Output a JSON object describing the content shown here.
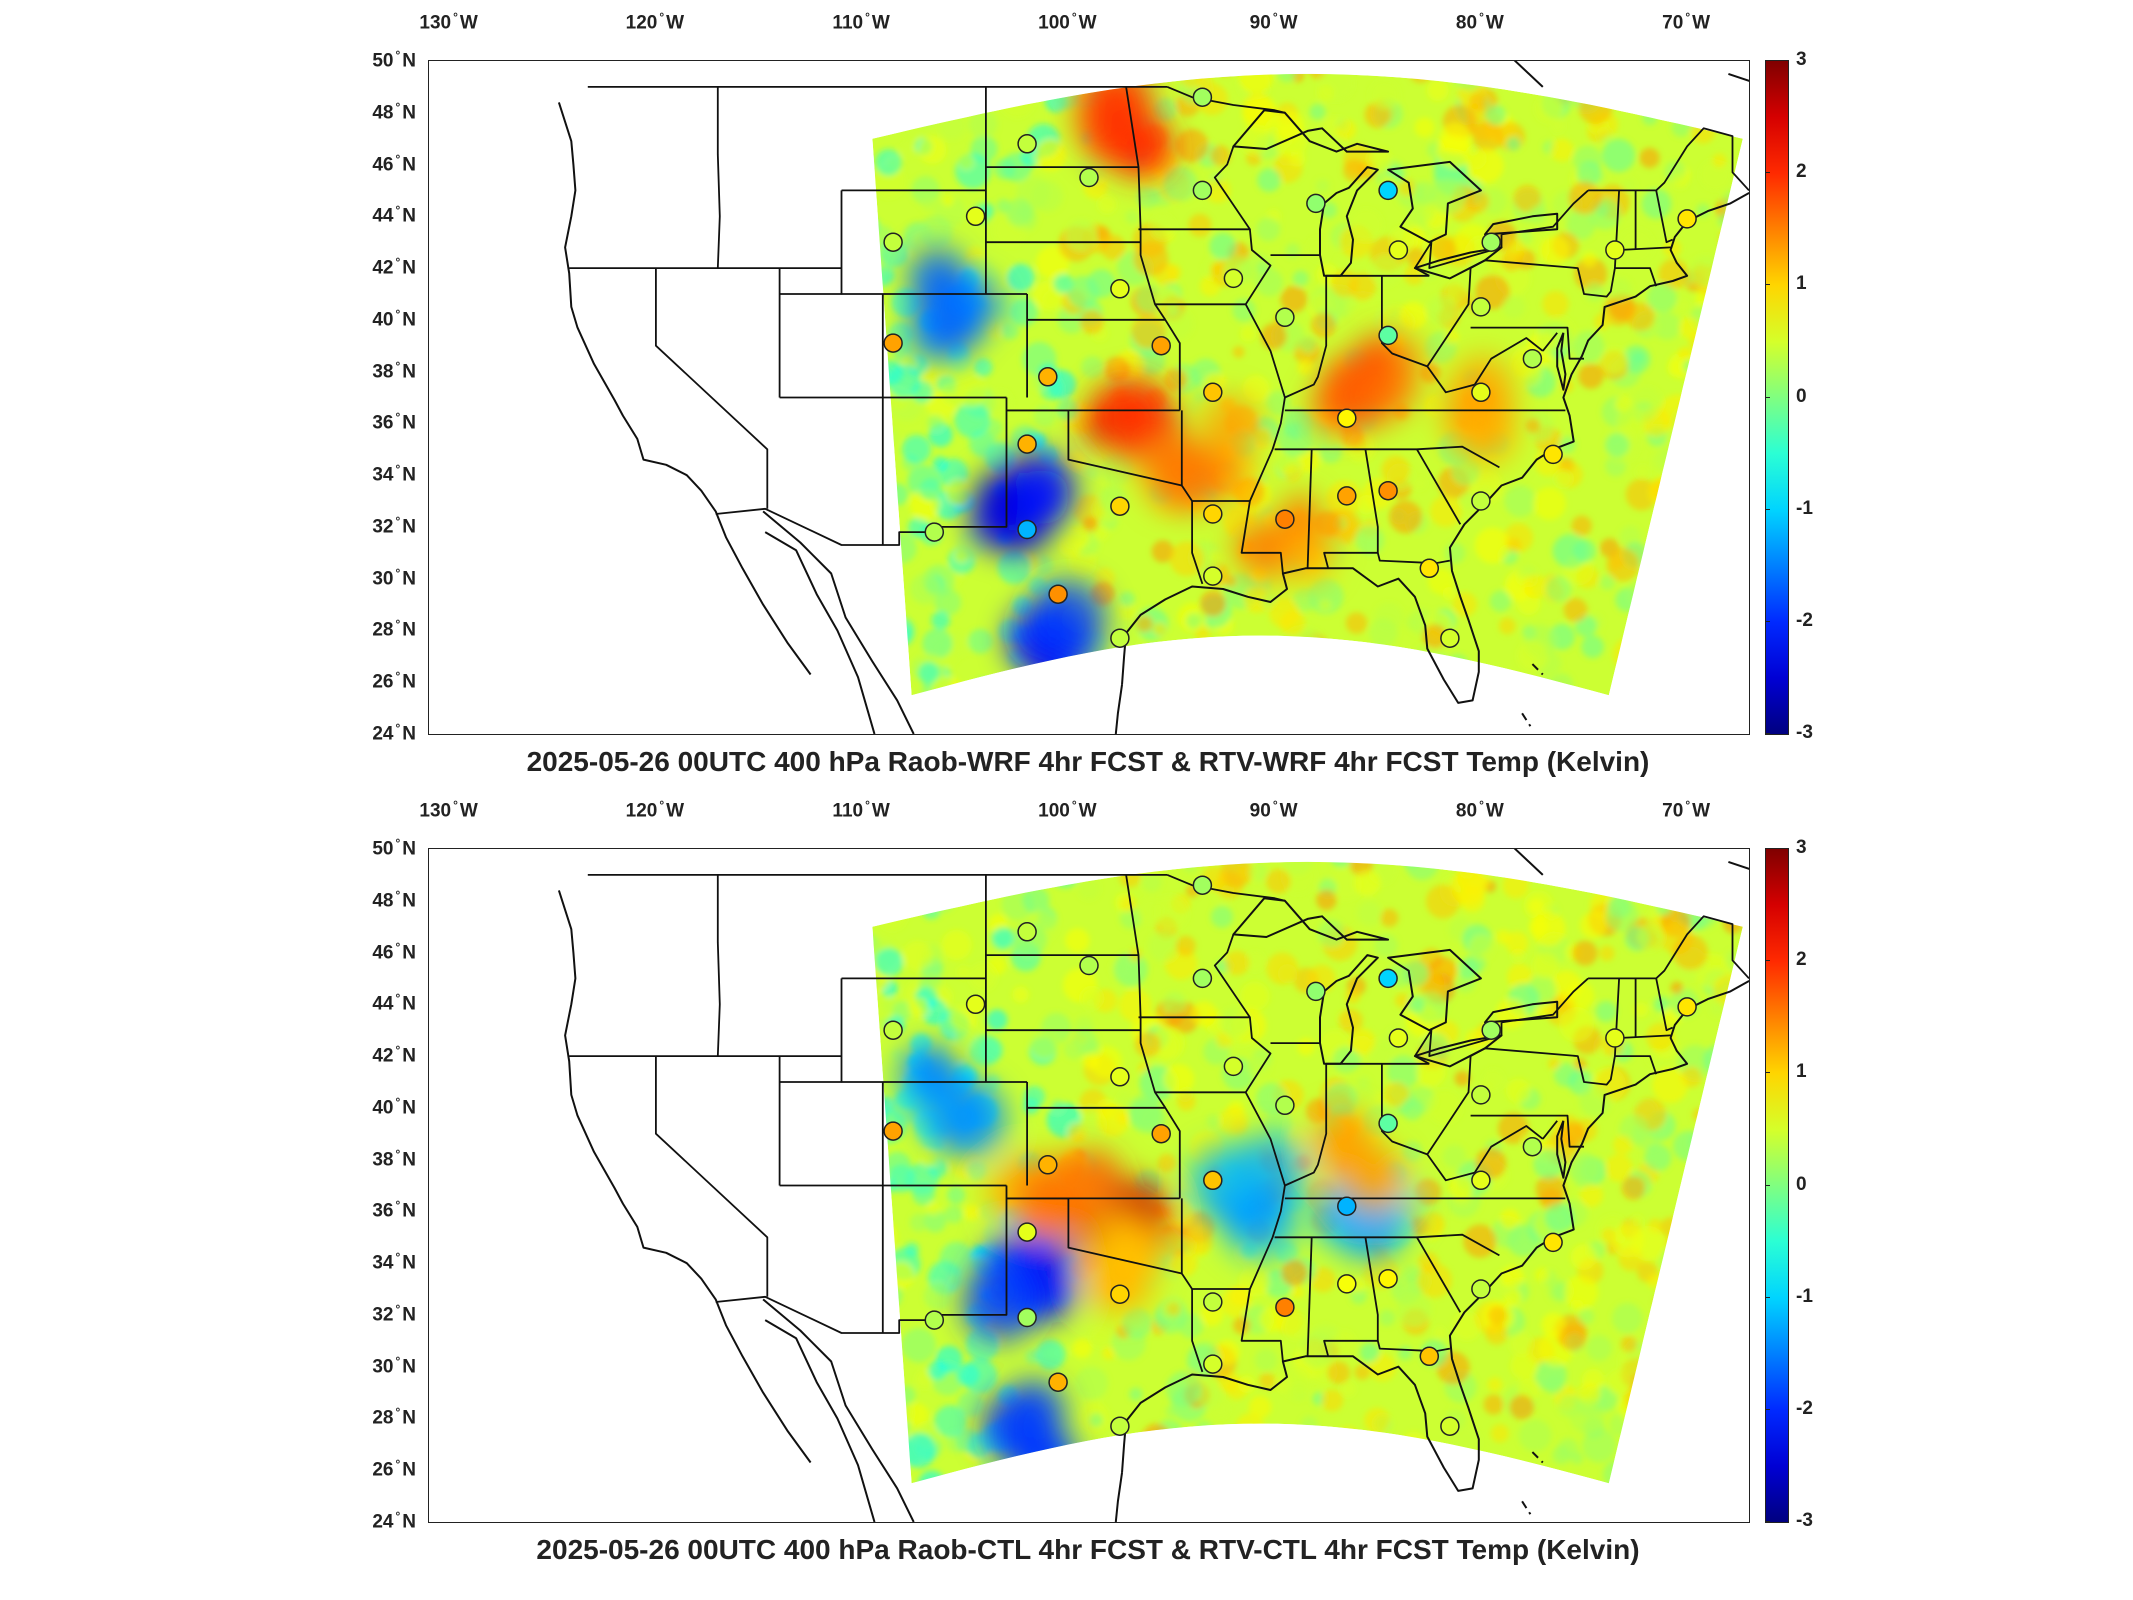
{
  "panels": [
    {
      "title": "2025-05-26 00UTC 400 hPa Raob-WRF 4hr FCST & RTV-WRF 4hr FCST Temp (Kelvin)",
      "hot_regions": [
        {
          "lon": -97.5,
          "lat": 36.0,
          "v": 2.7
        },
        {
          "lon": -97.0,
          "lat": 47.5,
          "v": 2.2
        },
        {
          "lon": -85.5,
          "lat": 37.5,
          "v": 2.0
        },
        {
          "lon": -93.5,
          "lat": 35.0,
          "v": 1.8
        },
        {
          "lon": -89.5,
          "lat": 32.0,
          "v": 1.6
        },
        {
          "lon": -79.0,
          "lat": 36.5,
          "v": 1.4
        }
      ],
      "cold_regions": [
        {
          "lon": -102.0,
          "lat": 33.0,
          "v": -2.6
        },
        {
          "lon": -106.0,
          "lat": 40.5,
          "v": -2.0
        },
        {
          "lon": -101.0,
          "lat": 27.5,
          "v": -2.4
        }
      ],
      "stations": [
        {
          "lon": -93.5,
          "lat": 48.6,
          "v": 0.2
        },
        {
          "lon": -102.0,
          "lat": 46.8,
          "v": 0.4
        },
        {
          "lon": -99.0,
          "lat": 45.5,
          "v": 0.3
        },
        {
          "lon": -93.5,
          "lat": 45.0,
          "v": 0.2
        },
        {
          "lon": -88.0,
          "lat": 44.5,
          "v": 0.1
        },
        {
          "lon": -84.5,
          "lat": 45.0,
          "v": -1.0
        },
        {
          "lon": -104.5,
          "lat": 44.0,
          "v": 0.6
        },
        {
          "lon": -108.5,
          "lat": 43.0,
          "v": 0.4
        },
        {
          "lon": -84.0,
          "lat": 42.7,
          "v": 0.6
        },
        {
          "lon": -79.5,
          "lat": 43.0,
          "v": 0.2
        },
        {
          "lon": -73.5,
          "lat": 42.7,
          "v": 0.6
        },
        {
          "lon": -70.0,
          "lat": 43.9,
          "v": 0.9
        },
        {
          "lon": -92.0,
          "lat": 41.6,
          "v": 0.5
        },
        {
          "lon": -97.5,
          "lat": 41.2,
          "v": 0.6
        },
        {
          "lon": -89.5,
          "lat": 40.1,
          "v": 0.3
        },
        {
          "lon": -84.5,
          "lat": 39.4,
          "v": -0.2
        },
        {
          "lon": -80.0,
          "lat": 40.5,
          "v": 0.4
        },
        {
          "lon": -77.5,
          "lat": 38.5,
          "v": 0.3
        },
        {
          "lon": -108.5,
          "lat": 39.1,
          "v": 1.3
        },
        {
          "lon": -95.5,
          "lat": 39.0,
          "v": 1.3
        },
        {
          "lon": -101.0,
          "lat": 37.8,
          "v": 1.2
        },
        {
          "lon": -93.0,
          "lat": 37.2,
          "v": 1.1
        },
        {
          "lon": -86.5,
          "lat": 36.2,
          "v": 0.8
        },
        {
          "lon": -80.0,
          "lat": 37.2,
          "v": 0.6
        },
        {
          "lon": -102.0,
          "lat": 35.2,
          "v": 1.2
        },
        {
          "lon": -76.5,
          "lat": 34.8,
          "v": 0.9
        },
        {
          "lon": -97.5,
          "lat": 32.8,
          "v": 1.0
        },
        {
          "lon": -93.0,
          "lat": 32.5,
          "v": 1.0
        },
        {
          "lon": -89.5,
          "lat": 32.3,
          "v": 1.5
        },
        {
          "lon": -86.5,
          "lat": 33.2,
          "v": 1.3
        },
        {
          "lon": -84.5,
          "lat": 33.4,
          "v": 1.4
        },
        {
          "lon": -80.0,
          "lat": 33.0,
          "v": 0.4
        },
        {
          "lon": -106.5,
          "lat": 31.8,
          "v": 0.3
        },
        {
          "lon": -102.0,
          "lat": 31.9,
          "v": -1.2
        },
        {
          "lon": -100.5,
          "lat": 29.4,
          "v": 1.4
        },
        {
          "lon": -93.0,
          "lat": 30.1,
          "v": 0.5
        },
        {
          "lon": -82.5,
          "lat": 30.4,
          "v": 0.9
        },
        {
          "lon": -97.5,
          "lat": 27.7,
          "v": 0.4
        },
        {
          "lon": -81.5,
          "lat": 27.7,
          "v": 0.5
        }
      ]
    },
    {
      "title": "2025-05-26 00UTC 400 hPa Raob-CTL 4hr FCST & RTV-CTL 4hr FCST Temp (Kelvin)",
      "hot_regions": [
        {
          "lon": -97.5,
          "lat": 36.0,
          "v": 2.6
        },
        {
          "lon": -85.5,
          "lat": 37.8,
          "v": 1.5
        },
        {
          "lon": -101.5,
          "lat": 37.0,
          "v": 1.6
        },
        {
          "lon": -96.5,
          "lat": 34.0,
          "v": 1.5
        }
      ],
      "cold_regions": [
        {
          "lon": -102.0,
          "lat": 33.0,
          "v": -2.4
        },
        {
          "lon": -91.0,
          "lat": 36.5,
          "v": -1.6
        },
        {
          "lon": -86.0,
          "lat": 36.0,
          "v": -1.4
        },
        {
          "lon": -106.0,
          "lat": 40.5,
          "v": -1.6
        },
        {
          "lon": -101.0,
          "lat": 27.5,
          "v": -2.2
        }
      ],
      "stations": [
        {
          "lon": -93.5,
          "lat": 48.6,
          "v": 0.2
        },
        {
          "lon": -102.0,
          "lat": 46.8,
          "v": 0.4
        },
        {
          "lon": -99.0,
          "lat": 45.5,
          "v": 0.3
        },
        {
          "lon": -93.5,
          "lat": 45.0,
          "v": 0.2
        },
        {
          "lon": -88.0,
          "lat": 44.5,
          "v": 0.1
        },
        {
          "lon": -84.5,
          "lat": 45.0,
          "v": -1.0
        },
        {
          "lon": -104.5,
          "lat": 44.0,
          "v": 0.6
        },
        {
          "lon": -108.5,
          "lat": 43.0,
          "v": 0.4
        },
        {
          "lon": -84.0,
          "lat": 42.7,
          "v": 0.6
        },
        {
          "lon": -79.5,
          "lat": 43.0,
          "v": 0.2
        },
        {
          "lon": -73.5,
          "lat": 42.7,
          "v": 0.6
        },
        {
          "lon": -70.0,
          "lat": 43.9,
          "v": 0.9
        },
        {
          "lon": -92.0,
          "lat": 41.6,
          "v": 0.5
        },
        {
          "lon": -97.5,
          "lat": 41.2,
          "v": 0.6
        },
        {
          "lon": -89.5,
          "lat": 40.1,
          "v": 0.3
        },
        {
          "lon": -84.5,
          "lat": 39.4,
          "v": -0.2
        },
        {
          "lon": -80.0,
          "lat": 40.5,
          "v": 0.4
        },
        {
          "lon": -77.5,
          "lat": 38.5,
          "v": 0.3
        },
        {
          "lon": -108.5,
          "lat": 39.1,
          "v": 1.3
        },
        {
          "lon": -95.5,
          "lat": 39.0,
          "v": 1.3
        },
        {
          "lon": -101.0,
          "lat": 37.8,
          "v": 1.2
        },
        {
          "lon": -93.0,
          "lat": 37.2,
          "v": 1.1
        },
        {
          "lon": -86.5,
          "lat": 36.2,
          "v": -1.2
        },
        {
          "lon": -80.0,
          "lat": 37.2,
          "v": 0.6
        },
        {
          "lon": -102.0,
          "lat": 35.2,
          "v": 0.6
        },
        {
          "lon": -76.5,
          "lat": 34.8,
          "v": 0.9
        },
        {
          "lon": -97.5,
          "lat": 32.8,
          "v": 1.0
        },
        {
          "lon": -93.0,
          "lat": 32.5,
          "v": 0.4
        },
        {
          "lon": -89.5,
          "lat": 32.3,
          "v": 1.5
        },
        {
          "lon": -86.5,
          "lat": 33.2,
          "v": 0.7
        },
        {
          "lon": -84.5,
          "lat": 33.4,
          "v": 0.8
        },
        {
          "lon": -80.0,
          "lat": 33.0,
          "v": 0.4
        },
        {
          "lon": -106.5,
          "lat": 31.8,
          "v": 0.3
        },
        {
          "lon": -102.0,
          "lat": 31.9,
          "v": 0.2
        },
        {
          "lon": -100.5,
          "lat": 29.4,
          "v": 1.2
        },
        {
          "lon": -93.0,
          "lat": 30.1,
          "v": 0.5
        },
        {
          "lon": -82.5,
          "lat": 30.4,
          "v": 1.1
        },
        {
          "lon": -97.5,
          "lat": 27.7,
          "v": 0.4
        },
        {
          "lon": -81.5,
          "lat": 27.7,
          "v": 0.5
        }
      ]
    }
  ],
  "axes": {
    "lon_ticks": [
      "130",
      "120",
      "110",
      "100",
      "90",
      "80",
      "70"
    ],
    "lon_hemisphere": "W",
    "lon_values": [
      -130,
      -120,
      -110,
      -100,
      -90,
      -80,
      -70
    ],
    "lat_ticks": [
      "50",
      "48",
      "46",
      "44",
      "42",
      "40",
      "38",
      "36",
      "34",
      "32",
      "30",
      "28",
      "26",
      "24"
    ],
    "lat_hemisphere": "N",
    "lat_values": [
      50,
      48,
      46,
      44,
      42,
      40,
      38,
      36,
      34,
      32,
      30,
      28,
      26,
      24
    ],
    "lon_range": [
      -131,
      -67
    ],
    "lat_range": [
      24,
      50
    ]
  },
  "colorbar": {
    "ticks": [
      "3",
      "2",
      "1",
      "0",
      "-1",
      "-2",
      "-3"
    ],
    "tick_values": [
      3,
      2,
      1,
      0,
      -1,
      -2,
      -3
    ],
    "range": [
      -3,
      3
    ],
    "colormap": "jet"
  }
}
